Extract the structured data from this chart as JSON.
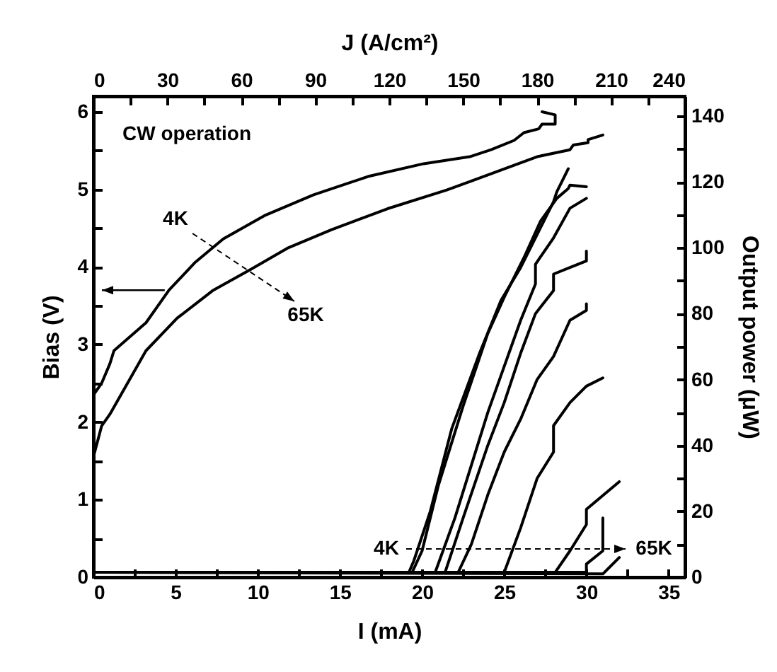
{
  "chart_data": {
    "type": "line",
    "xlabel": "I (mA)",
    "ylabel": "Bias (V)",
    "y2label": "Output power (μW)",
    "x2label": "J (A/cm²)",
    "xlim": [
      0,
      36
    ],
    "xticks": [
      0,
      {
        "value": 2.5,
        "label": null
      },
      5,
      {
        "value": 7.5,
        "label": null
      },
      10,
      {
        "value": 12.5,
        "label": null
      },
      15,
      {
        "value": 17.5,
        "label": null
      },
      20,
      {
        "value": 22.5,
        "label": null
      },
      25,
      {
        "value": 27.5,
        "label": null
      },
      30,
      {
        "value": 32.5,
        "label": null
      },
      35
    ],
    "x2lim": [
      0,
      240
    ],
    "x2ticks": [
      0,
      {
        "value": 15,
        "label": null
      },
      30,
      {
        "value": 45,
        "label": null
      },
      60,
      {
        "value": 75,
        "label": null
      },
      90,
      {
        "value": 105,
        "label": null
      },
      120,
      {
        "value": 135,
        "label": null
      },
      150,
      {
        "value": 165,
        "label": null
      },
      180,
      {
        "value": 195,
        "label": null
      },
      210,
      {
        "value": 225,
        "label": null
      },
      240
    ],
    "ylim": [
      0,
      6.2
    ],
    "yticks": [
      0,
      {
        "value": 0.5,
        "label": null
      },
      1,
      {
        "value": 1.5,
        "label": null
      },
      2,
      {
        "value": 2.5,
        "label": null
      },
      3,
      {
        "value": 3.5,
        "label": null
      },
      4,
      {
        "value": 4.5,
        "label": null
      },
      5,
      {
        "value": 5.5,
        "label": null
      },
      6
    ],
    "y2lim": [
      0,
      146
    ],
    "y2ticks": [
      0,
      {
        "value": 10,
        "label": null
      },
      20,
      {
        "value": 30,
        "label": null
      },
      40,
      {
        "value": 50,
        "label": null
      },
      60,
      {
        "value": 70,
        "label": null
      },
      80,
      {
        "value": 90,
        "label": null
      },
      100,
      {
        "value": 110,
        "label": null
      },
      120,
      {
        "value": 130,
        "label": null
      },
      140
    ],
    "grid": false,
    "line_style": "solid",
    "marker": "none",
    "series": [
      {
        "color": "#000000",
        "x": [
          0,
          0.5,
          1,
          1.25,
          3.2,
          4.6,
          6.2,
          7.9,
          10.4,
          13.4,
          16.8,
          20.1,
          22.9,
          24.2,
          25.6,
          26.2,
          27.1,
          27.3,
          28.1,
          28.1,
          27.3
        ],
        "values": [
          2.35,
          2.5,
          2.75,
          2.92,
          3.28,
          3.7,
          4.06,
          4.36,
          4.66,
          4.93,
          5.17,
          5.33,
          5.42,
          5.51,
          5.63,
          5.73,
          5.78,
          5.84,
          5.84,
          5.96,
          6.0
        ]
      },
      {
        "color": "#000000",
        "x": [
          0,
          0.5,
          1,
          3.2,
          5.1,
          7.3,
          9.6,
          11.8,
          14.5,
          17.9,
          21.5,
          24.2,
          27,
          29,
          29.2,
          30.1,
          30.1,
          31
        ],
        "values": [
          1.55,
          1.95,
          2.1,
          2.92,
          3.34,
          3.7,
          3.97,
          4.24,
          4.48,
          4.75,
          4.99,
          5.2,
          5.42,
          5.51,
          5.57,
          5.6,
          5.64,
          5.7
        ]
      },
      {
        "color": "#000000",
        "axis": "y2",
        "x": [
          0,
          19.2,
          19.5,
          20.5,
          21.8,
          23.5,
          24.8,
          26,
          27,
          28,
          28.2,
          28.9
        ],
        "values": [
          1.5,
          1.5,
          5,
          20,
          45,
          68,
          84,
          94,
          104,
          114,
          117,
          124
        ]
      },
      {
        "color": "#000000",
        "axis": "y2",
        "x": [
          0,
          19.4,
          20,
          21,
          22.5,
          24,
          25,
          26.2,
          27.2,
          28.2,
          28.9,
          29,
          30
        ],
        "values": [
          1.5,
          1.5,
          8,
          28,
          52,
          74,
          85,
          97,
          108,
          115,
          118,
          119,
          118.5
        ]
      },
      {
        "color": "#000000",
        "axis": "y2",
        "x": [
          0,
          20.8,
          22,
          23,
          24,
          25,
          26,
          26.9,
          26.9,
          28,
          29,
          30
        ],
        "values": [
          1.5,
          1.5,
          18,
          34,
          50,
          64,
          78,
          89,
          95,
          103,
          112,
          115
        ]
      },
      {
        "color": "#000000",
        "axis": "y2",
        "x": [
          0,
          21.4,
          22.5,
          24,
          25,
          26,
          26.9,
          28,
          28,
          29,
          30,
          30
        ],
        "values": [
          1.5,
          1.5,
          18,
          40,
          53,
          68,
          80,
          87,
          92,
          94,
          96,
          99
        ]
      },
      {
        "color": "#000000",
        "axis": "y2",
        "x": [
          0,
          22.2,
          23,
          24,
          25,
          26,
          27,
          28,
          29,
          30,
          30
        ],
        "values": [
          1.5,
          1.5,
          10,
          25,
          38,
          48,
          60,
          67,
          78,
          81,
          83
        ]
      },
      {
        "color": "#000000",
        "axis": "y2",
        "x": [
          0,
          25,
          26,
          27,
          28,
          28,
          29,
          30,
          31
        ],
        "values": [
          1.5,
          1.5,
          15,
          30,
          38,
          46,
          53,
          58,
          60.5
        ]
      },
      {
        "color": "#000000",
        "axis": "y2",
        "x": [
          0,
          28.1,
          29,
          30,
          30,
          32
        ],
        "values": [
          1.5,
          1.5,
          8,
          16,
          20.6,
          29
        ]
      },
      {
        "color": "#000000",
        "axis": "y2",
        "x": [
          0,
          30,
          30,
          31,
          31
        ],
        "values": [
          1.5,
          1.5,
          4,
          8,
          18
        ]
      },
      {
        "color": "#000000",
        "axis": "y2",
        "x": [
          0,
          31,
          32
        ],
        "values": [
          1.5,
          1,
          6
        ]
      }
    ],
    "annotations": [
      "CW operation",
      "4K",
      "65K",
      "4K",
      "65K"
    ]
  }
}
